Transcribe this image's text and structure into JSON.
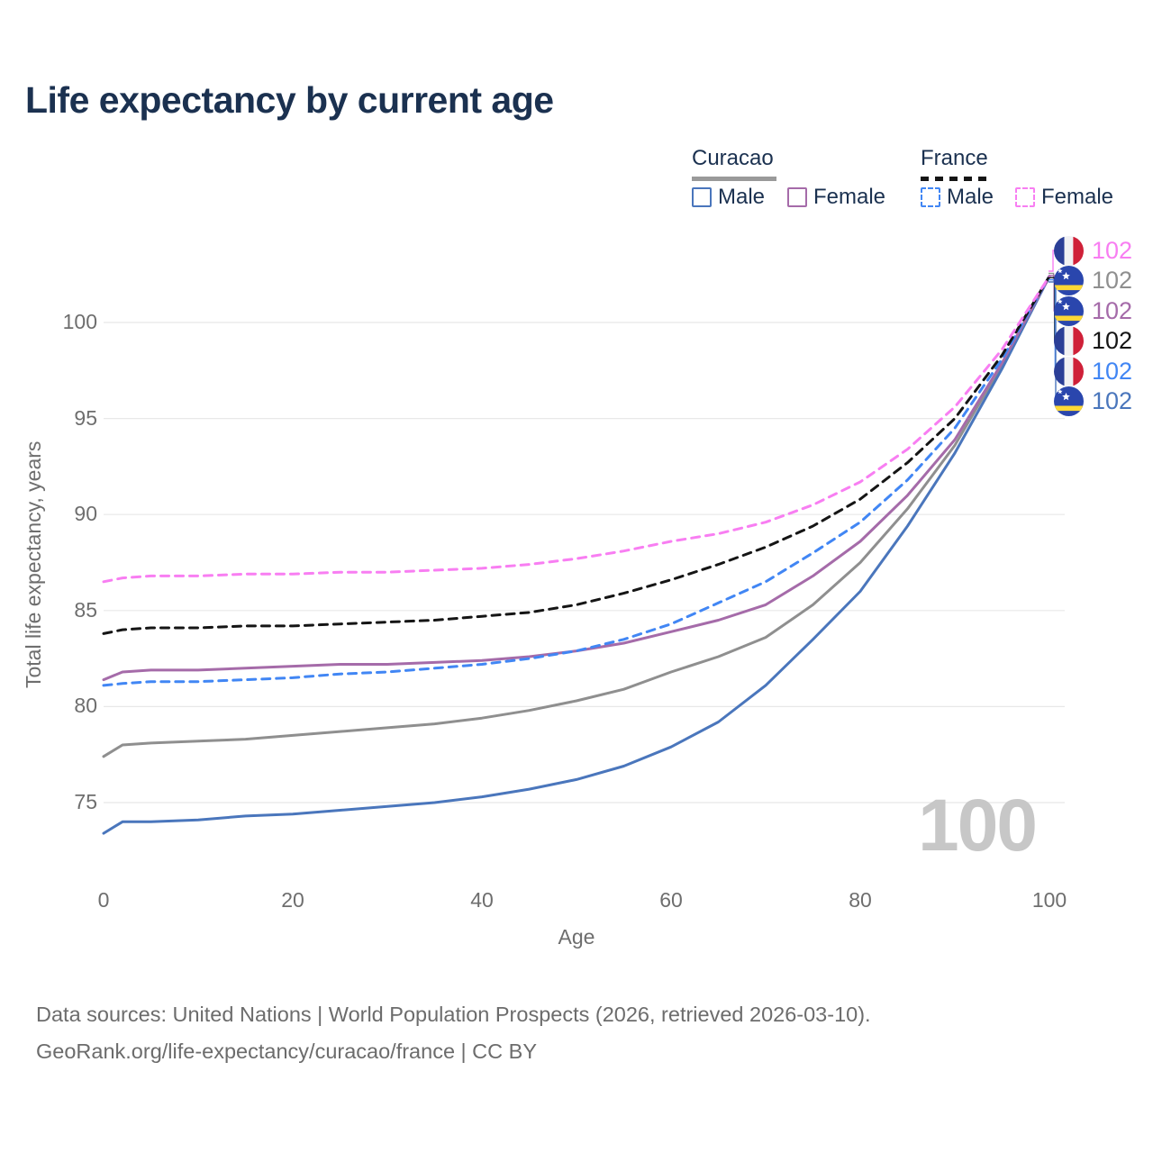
{
  "title": "Life expectancy by current age",
  "watermark": "100",
  "legend": {
    "groups": [
      {
        "name": "Curacao",
        "line_style": "solid",
        "underline_color": "#9a9a9a",
        "items": [
          {
            "label": "Male",
            "color": "#4a76bc"
          },
          {
            "label": "Female",
            "color": "#a56ba9"
          }
        ]
      },
      {
        "name": "France",
        "line_style": "dashed",
        "underline_color": "#151515",
        "items": [
          {
            "label": "Male",
            "color": "#4186f4"
          },
          {
            "label": "Female",
            "color": "#f87ef2"
          }
        ]
      }
    ]
  },
  "chart_data": {
    "type": "line",
    "title": "Life expectancy by current age",
    "xlabel": "Age",
    "ylabel": "Total life expectancy, years",
    "x_ticks": [
      0,
      20,
      40,
      60,
      80,
      100
    ],
    "y_ticks": [
      75,
      80,
      85,
      90,
      95,
      100
    ],
    "xlim": [
      0,
      100
    ],
    "ylim": [
      72.5,
      103.5
    ],
    "grid": "horizontal-only",
    "legend_position": "top-right",
    "ages": [
      0,
      2,
      5,
      10,
      15,
      20,
      25,
      30,
      35,
      40,
      45,
      50,
      55,
      60,
      65,
      70,
      75,
      80,
      85,
      90,
      95,
      100
    ],
    "series": [
      {
        "id": "curacao_both",
        "name": "Curacao - Both sexes",
        "country": "curacao",
        "sex": "both",
        "style": "solid",
        "color": "#8f8f8f",
        "end_label": "102",
        "values": [
          77.4,
          78.0,
          78.1,
          78.2,
          78.3,
          78.5,
          78.7,
          78.9,
          79.1,
          79.4,
          79.8,
          80.3,
          80.9,
          81.8,
          82.6,
          83.6,
          85.3,
          87.5,
          90.3,
          93.6,
          97.8,
          102.4
        ]
      },
      {
        "id": "curacao_male",
        "name": "Curacao - Male",
        "country": "curacao",
        "sex": "male",
        "style": "solid",
        "color": "#4a76bc",
        "end_label": "102",
        "values": [
          73.4,
          74.0,
          74.0,
          74.1,
          74.3,
          74.4,
          74.6,
          74.8,
          75.0,
          75.3,
          75.7,
          76.2,
          76.9,
          77.9,
          79.2,
          81.1,
          83.5,
          86.0,
          89.4,
          93.2,
          97.6,
          102.4
        ]
      },
      {
        "id": "curacao_female",
        "name": "Curacao - Female",
        "country": "curacao",
        "sex": "female",
        "style": "solid",
        "color": "#a56ba9",
        "end_label": "102",
        "values": [
          81.4,
          81.8,
          81.9,
          81.9,
          82.0,
          82.1,
          82.2,
          82.2,
          82.3,
          82.4,
          82.6,
          82.9,
          83.3,
          83.9,
          84.5,
          85.3,
          86.8,
          88.6,
          91.0,
          93.9,
          97.9,
          102.4
        ]
      },
      {
        "id": "france_male",
        "name": "France - Male",
        "country": "france",
        "sex": "male",
        "style": "dashed",
        "color": "#4186f4",
        "end_label": "102",
        "values": [
          81.1,
          81.2,
          81.3,
          81.3,
          81.4,
          81.5,
          81.7,
          81.8,
          82.0,
          82.2,
          82.5,
          82.9,
          83.5,
          84.3,
          85.4,
          86.5,
          88.0,
          89.6,
          91.8,
          94.5,
          98.1,
          102.4
        ]
      },
      {
        "id": "france_both",
        "name": "France - Both sexes",
        "country": "france",
        "sex": "both",
        "style": "dashed",
        "color": "#151515",
        "end_label": "102",
        "values": [
          83.8,
          84.0,
          84.1,
          84.1,
          84.2,
          84.2,
          84.3,
          84.4,
          84.5,
          84.7,
          84.9,
          85.3,
          85.9,
          86.6,
          87.4,
          88.3,
          89.4,
          90.8,
          92.7,
          95.0,
          98.3,
          102.4
        ]
      },
      {
        "id": "france_female",
        "name": "France - Female",
        "country": "france",
        "sex": "female",
        "style": "dashed",
        "color": "#f87ef2",
        "end_label": "102",
        "values": [
          86.5,
          86.7,
          86.8,
          86.8,
          86.9,
          86.9,
          87.0,
          87.0,
          87.1,
          87.2,
          87.4,
          87.7,
          88.1,
          88.6,
          89.0,
          89.6,
          90.5,
          91.7,
          93.4,
          95.6,
          98.6,
          102.4
        ]
      }
    ],
    "end_label_order": [
      "france_female",
      "curacao_both",
      "curacao_female",
      "france_both",
      "france_male",
      "curacao_male"
    ]
  },
  "flags": {
    "france": {
      "blue": "#2b3f97",
      "white": "#f1f1f3",
      "red": "#cf2038"
    },
    "curacao": {
      "blue": "#2a46ad",
      "yellow": "#fdd835",
      "star": "#ffffff"
    }
  },
  "footer": {
    "line1": "Data sources: United Nations | World Population Prospects (2026, retrieved 2026-03-10).",
    "line2": "GeoRank.org/life-expectancy/curacao/france | CC BY"
  }
}
